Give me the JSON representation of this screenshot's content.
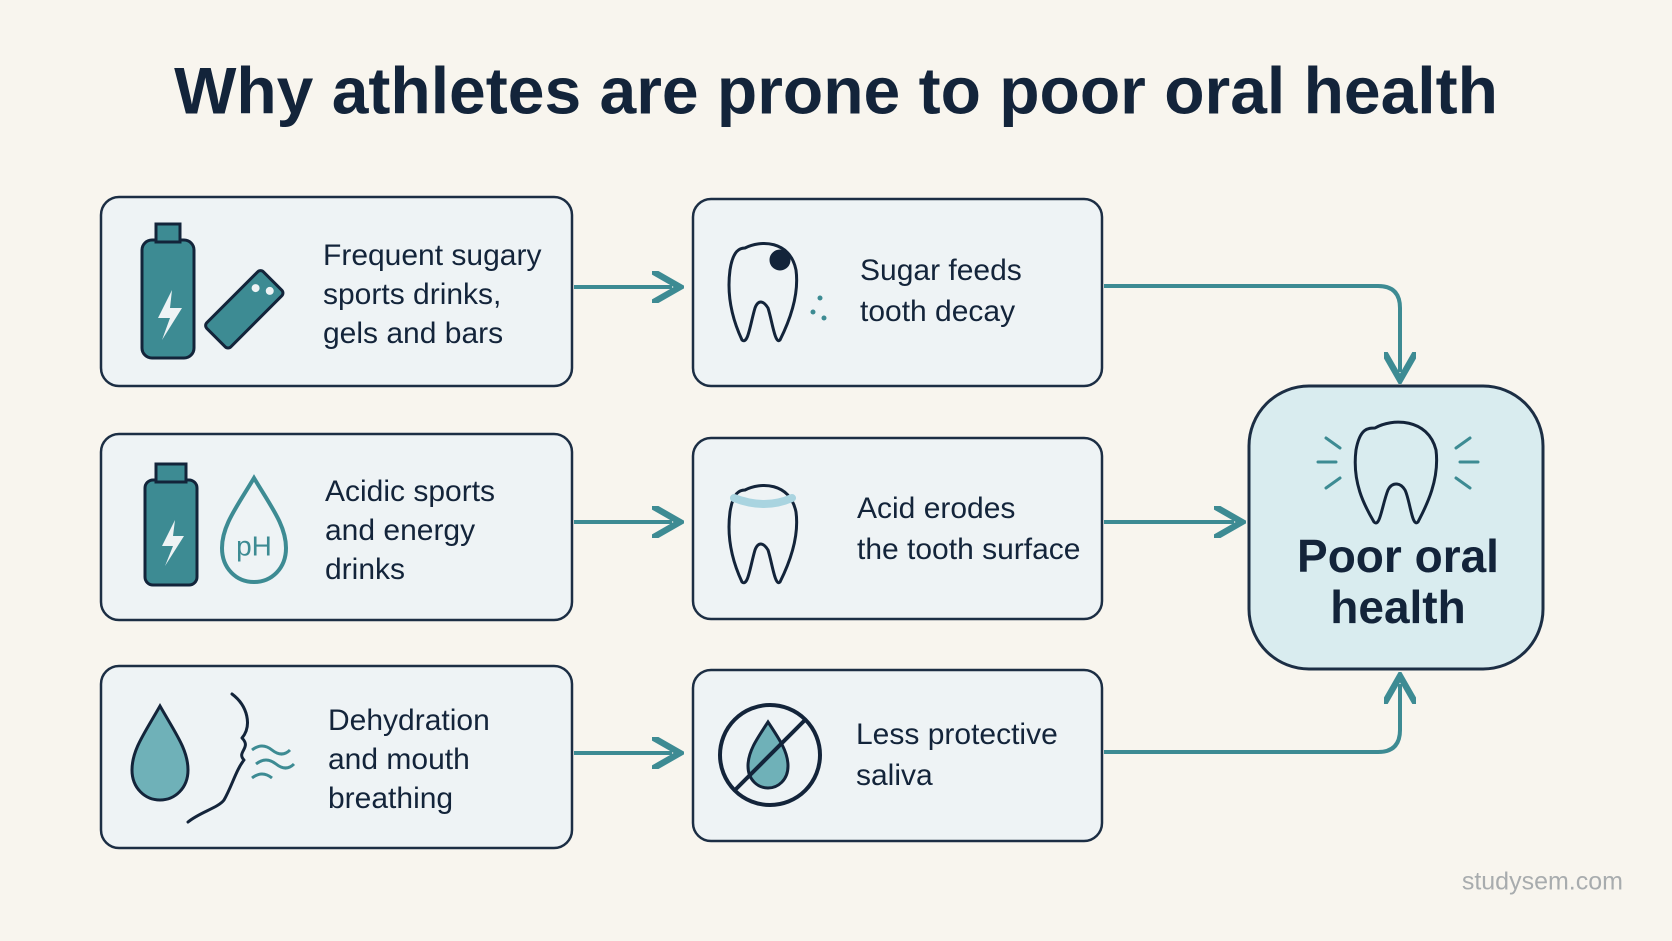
{
  "title": "Why athletes are prone to poor oral health",
  "rows": [
    {
      "cause": [
        "Frequent sugary",
        "sports drinks,",
        "gels and bars"
      ],
      "effect": [
        "Sugar feeds",
        "tooth decay"
      ]
    },
    {
      "cause": [
        "Acidic sports",
        "and energy",
        "drinks"
      ],
      "effect": [
        "Acid erodes",
        "the tooth surface"
      ]
    },
    {
      "cause": [
        "Dehydration",
        "and mouth",
        "breathing"
      ],
      "effect": [
        "Less protective",
        "saliva"
      ]
    }
  ],
  "outcome": [
    "Poor oral",
    "health"
  ],
  "watermark": "studysem.com"
}
